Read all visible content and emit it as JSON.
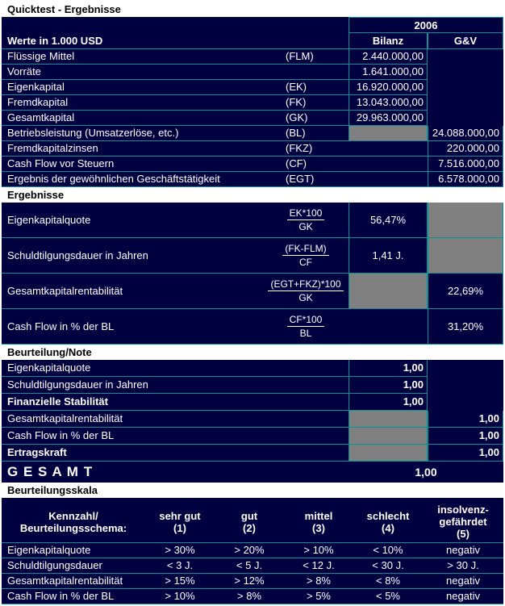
{
  "page": {
    "title": "Quicktest - Ergebnisse",
    "year": "2006",
    "units": "Werte in 1.000 USD",
    "columns": {
      "bilanz": "Bilanz",
      "gv": "G&V"
    }
  },
  "values_section": {
    "rows": [
      {
        "label": "Flüssige Mittel",
        "code": "(FLM)",
        "bilanz": "2.440.000,00",
        "bilanz_state": "value",
        "gv": "",
        "gv_state": "blank"
      },
      {
        "label": "Vorräte",
        "code": "",
        "bilanz": "1.641.000,00",
        "bilanz_state": "value",
        "gv": "",
        "gv_state": "blank"
      },
      {
        "label": "Eigenkapital",
        "code": "(EK)",
        "bilanz": "16.920.000,00",
        "bilanz_state": "value",
        "gv": "",
        "gv_state": "blank"
      },
      {
        "label": "Fremdkapital",
        "code": "(FK)",
        "bilanz": "13.043.000,00",
        "bilanz_state": "value",
        "gv": "",
        "gv_state": "blank"
      },
      {
        "label": "Gesamtkapital",
        "code": "(GK)",
        "bilanz": "29.963.000,00",
        "bilanz_state": "value",
        "gv": "",
        "gv_state": "blank"
      },
      {
        "label": "Betriebsleistung (Umsatzerlöse, etc.)",
        "code": "(BL)",
        "bilanz": "",
        "bilanz_state": "gray",
        "gv": "24.088.000,00",
        "gv_state": "value"
      },
      {
        "label": "Fremdkapitalzinsen",
        "code": "(FKZ)",
        "bilanz": "",
        "bilanz_state": "empty",
        "gv": "220.000,00",
        "gv_state": "value"
      },
      {
        "label": "Cash Flow vor Steuern",
        "code": "(CF)",
        "bilanz": "",
        "bilanz_state": "empty",
        "gv": "7.516.000,00",
        "gv_state": "value"
      },
      {
        "label": "Ergebnis der gewöhnlichen Geschäftstätigkeit",
        "code": "(EGT)",
        "bilanz": "",
        "bilanz_state": "empty",
        "gv": "6.578.000,00",
        "gv_state": "value"
      }
    ]
  },
  "results_section": {
    "header": "Ergebnisse",
    "rows": [
      {
        "label": "Eigenkapitalquote",
        "formula_top": "EK*100",
        "formula_bottom": "GK",
        "bilanz": "56,47%",
        "bilanz_state": "value",
        "gv": "",
        "gv_state": "gray"
      },
      {
        "label": "Schuldtilgungsdauer in Jahren",
        "formula_top": "(FK-FLM)",
        "formula_bottom": "CF",
        "bilanz": "1,41 J.",
        "bilanz_state": "value",
        "gv": "",
        "gv_state": "gray"
      },
      {
        "label": "Gesamtkapitalrentabilität",
        "formula_top": "(EGT+FKZ)*100",
        "formula_bottom": "GK",
        "bilanz": "",
        "bilanz_state": "gray",
        "gv": "22,69%",
        "gv_state": "value"
      },
      {
        "label": "Cash Flow in % der BL",
        "formula_top": "CF*100",
        "formula_bottom": "BL",
        "bilanz": "",
        "bilanz_state": "blank",
        "gv": "31,20%",
        "gv_state": "value"
      }
    ]
  },
  "rating_section": {
    "header": "Beurteilung/Note",
    "rows": [
      {
        "label": "Eigenkapitalquote",
        "bold": false,
        "bilanz": "1,00",
        "bilanz_state": "value",
        "gv": "",
        "gv_state": "blank"
      },
      {
        "label": "Schuldtilgungsdauer in Jahren",
        "bold": false,
        "bilanz": "1,00",
        "bilanz_state": "value",
        "gv": "",
        "gv_state": "blank"
      },
      {
        "label": "Finanzielle Stabilität",
        "bold": true,
        "bilanz": "1,00",
        "bilanz_state": "value",
        "gv": "",
        "gv_state": "blank"
      },
      {
        "label": "Gesamtkapitalrentabilität",
        "bold": false,
        "bilanz": "",
        "bilanz_state": "gray",
        "gv": "1,00",
        "gv_state": "value"
      },
      {
        "label": "Cash Flow in % der BL",
        "bold": false,
        "bilanz": "",
        "bilanz_state": "gray",
        "gv": "1,00",
        "gv_state": "value"
      },
      {
        "label": "Ertragskraft",
        "bold": true,
        "bilanz": "",
        "bilanz_state": "gray",
        "gv": "1,00",
        "gv_state": "value"
      }
    ]
  },
  "total": {
    "label": "G E S A M T",
    "value": "1,00"
  },
  "scale_section": {
    "header": "Beurteilungsskala",
    "col_headers": [
      {
        "lines": [
          "Kennzahl/",
          "Beurteilungsschema:"
        ]
      },
      {
        "lines": [
          "sehr gut",
          "(1)"
        ]
      },
      {
        "lines": [
          "gut",
          "(2)"
        ]
      },
      {
        "lines": [
          "mittel",
          "(3)"
        ]
      },
      {
        "lines": [
          "schlecht",
          "(4)"
        ]
      },
      {
        "lines": [
          "insolvenz-",
          "gefährdet",
          "(5)"
        ]
      }
    ],
    "rows": [
      {
        "label": "Eigenkapitalquote",
        "values": [
          "> 30%",
          "> 20%",
          "> 10%",
          "< 10%",
          "negativ"
        ]
      },
      {
        "label": "Schuldtilgungsdauer",
        "values": [
          "< 3 J.",
          "< 5 J.",
          "< 12 J.",
          "< 30 J.",
          "> 30 J."
        ]
      },
      {
        "label": "Gesamtkapitalrentabilität",
        "values": [
          "> 15%",
          "> 12%",
          "> 8%",
          "< 8%",
          "negativ"
        ]
      },
      {
        "label": "Cash Flow in % der BL",
        "values": [
          "> 10%",
          "> 8%",
          "> 5%",
          "< 5%",
          "negativ"
        ]
      }
    ]
  },
  "colors": {
    "background": "#000040",
    "grid": "#009494",
    "section_header_bg": "#FFFFFF",
    "section_header_text": "#000000",
    "disabled_cell": "#808080",
    "text": "#FFFFFF"
  }
}
